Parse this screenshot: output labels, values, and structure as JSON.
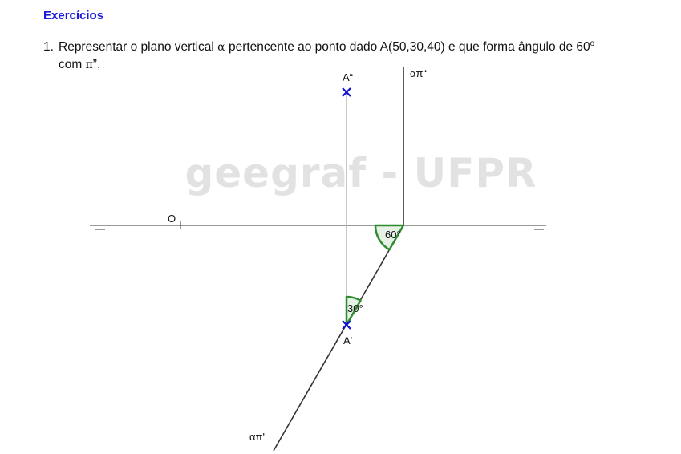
{
  "section_title": "Exercícios",
  "exercise": {
    "number": "1.",
    "text_part1": "Representar o plano vertical ",
    "alpha": "α",
    "text_part2": " pertencente ao ponto dado A(50,30,40) e que forma ângulo de 60",
    "degree_sup": "o",
    "line2_part1": "com ",
    "pi": "π",
    "line2_part2": "”."
  },
  "diagram": {
    "watermark": "geegraf - UFPR",
    "origin_label": "O",
    "point_front_label": "A“",
    "point_top_label": "A'",
    "trace_front_label": "απ“",
    "trace_top_label": "απ'",
    "angle_60_label": "60°",
    "angle_30_label": "30°",
    "accent_color": "#2e8b2e",
    "point_color": "#1010cc"
  }
}
